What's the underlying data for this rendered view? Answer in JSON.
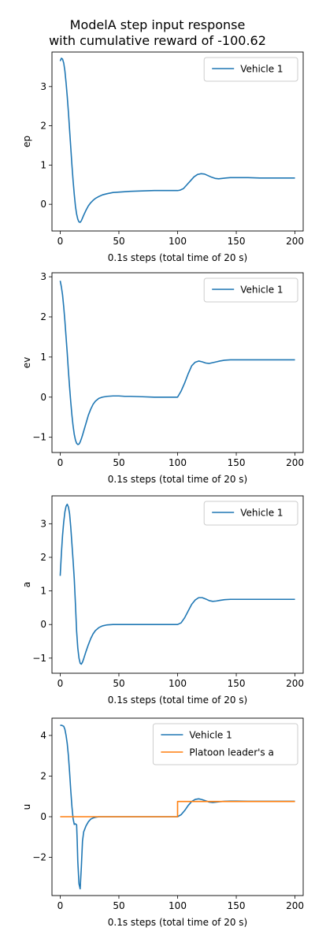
{
  "figure": {
    "title_line1": "ModelA step input response",
    "title_line2": "with cumulative reward of -100.62"
  },
  "colors": {
    "vehicle": "#1f77b4",
    "leader": "#ff7f0e",
    "axes": "#000000",
    "legend_border": "#cccccc"
  },
  "chart_data": [
    {
      "type": "line",
      "ylabel": "ep",
      "xlabel": "0.1s steps (total time of 20 s)",
      "xlim": [
        -7,
        207
      ],
      "ylim": [
        -0.68,
        3.88
      ],
      "xticks": [
        0,
        50,
        100,
        150,
        200
      ],
      "yticks": [
        0,
        1,
        2,
        3
      ],
      "grid": false,
      "legend_position": "upper right",
      "series": [
        {
          "name": "Vehicle 1",
          "color": "#1f77b4",
          "x": [
            0,
            1,
            2,
            3,
            4,
            5,
            6,
            7,
            8,
            9,
            10,
            11,
            12,
            13,
            14,
            15,
            16,
            17,
            18,
            19,
            20,
            22,
            24,
            26,
            28,
            30,
            33,
            36,
            40,
            45,
            50,
            55,
            60,
            70,
            80,
            90,
            95,
            100,
            102,
            105,
            108,
            111,
            114,
            117,
            120,
            123,
            126,
            129,
            132,
            135,
            138,
            141,
            145,
            150,
            155,
            160,
            170,
            180,
            190,
            200
          ],
          "y": [
            3.65,
            3.72,
            3.7,
            3.6,
            3.4,
            3.1,
            2.75,
            2.35,
            1.9,
            1.45,
            1.0,
            0.6,
            0.25,
            -0.05,
            -0.25,
            -0.38,
            -0.45,
            -0.46,
            -0.42,
            -0.35,
            -0.28,
            -0.15,
            -0.04,
            0.04,
            0.1,
            0.15,
            0.2,
            0.24,
            0.27,
            0.3,
            0.31,
            0.32,
            0.33,
            0.34,
            0.35,
            0.35,
            0.35,
            0.35,
            0.36,
            0.4,
            0.5,
            0.6,
            0.7,
            0.76,
            0.78,
            0.77,
            0.73,
            0.69,
            0.66,
            0.65,
            0.66,
            0.67,
            0.68,
            0.68,
            0.68,
            0.68,
            0.67,
            0.67,
            0.67,
            0.67
          ]
        }
      ]
    },
    {
      "type": "line",
      "ylabel": "ev",
      "xlabel": "0.1s steps (total time of 20 s)",
      "xlim": [
        -7,
        207
      ],
      "ylim": [
        -1.38,
        3.1
      ],
      "xticks": [
        0,
        50,
        100,
        150,
        200
      ],
      "yticks": [
        -1,
        0,
        1,
        2,
        3
      ],
      "grid": false,
      "legend_position": "upper right",
      "series": [
        {
          "name": "Vehicle 1",
          "color": "#1f77b4",
          "x": [
            0,
            1,
            2,
            3,
            4,
            5,
            6,
            7,
            8,
            9,
            10,
            11,
            12,
            13,
            14,
            15,
            16,
            17,
            18,
            19,
            20,
            22,
            24,
            26,
            28,
            30,
            33,
            36,
            40,
            45,
            50,
            55,
            60,
            70,
            80,
            90,
            95,
            100,
            103,
            106,
            109,
            112,
            115,
            118,
            121,
            124,
            127,
            130,
            133,
            136,
            140,
            145,
            150,
            160,
            170,
            180,
            190,
            200
          ],
          "y": [
            2.9,
            2.75,
            2.55,
            2.25,
            1.9,
            1.5,
            1.1,
            0.65,
            0.25,
            -0.12,
            -0.45,
            -0.72,
            -0.93,
            -1.07,
            -1.15,
            -1.18,
            -1.17,
            -1.12,
            -1.04,
            -0.95,
            -0.85,
            -0.65,
            -0.45,
            -0.3,
            -0.18,
            -0.1,
            -0.03,
            0.0,
            0.02,
            0.03,
            0.03,
            0.02,
            0.02,
            0.01,
            0.0,
            0.0,
            0.0,
            0.0,
            0.15,
            0.35,
            0.58,
            0.78,
            0.87,
            0.9,
            0.88,
            0.85,
            0.84,
            0.86,
            0.88,
            0.9,
            0.92,
            0.93,
            0.93,
            0.93,
            0.93,
            0.93,
            0.93,
            0.93
          ]
        }
      ]
    },
    {
      "type": "line",
      "ylabel": "a",
      "xlabel": "0.1s steps (total time of 20 s)",
      "xlim": [
        -7,
        207
      ],
      "ylim": [
        -1.45,
        3.83
      ],
      "xticks": [
        0,
        50,
        100,
        150,
        200
      ],
      "yticks": [
        -1,
        0,
        1,
        2,
        3
      ],
      "grid": false,
      "legend_position": "upper right",
      "series": [
        {
          "name": "Vehicle 1",
          "color": "#1f77b4",
          "x": [
            0,
            1,
            2,
            3,
            4,
            5,
            6,
            7,
            8,
            9,
            10,
            11,
            12,
            13,
            14,
            15,
            16,
            17,
            18,
            19,
            20,
            22,
            24,
            26,
            28,
            30,
            33,
            36,
            40,
            45,
            50,
            60,
            70,
            80,
            90,
            100,
            103,
            106,
            109,
            112,
            115,
            118,
            121,
            124,
            127,
            130,
            133,
            136,
            140,
            145,
            150,
            160,
            170,
            180,
            190,
            200
          ],
          "y": [
            1.45,
            2.1,
            2.65,
            3.05,
            3.35,
            3.52,
            3.58,
            3.5,
            3.3,
            2.9,
            2.4,
            1.9,
            1.35,
            0.6,
            -0.2,
            -0.7,
            -1.0,
            -1.15,
            -1.18,
            -1.12,
            -1.02,
            -0.8,
            -0.6,
            -0.42,
            -0.28,
            -0.18,
            -0.09,
            -0.04,
            -0.01,
            0.0,
            0.0,
            0.0,
            0.0,
            0.0,
            0.0,
            0.0,
            0.05,
            0.2,
            0.4,
            0.6,
            0.73,
            0.8,
            0.8,
            0.76,
            0.71,
            0.69,
            0.7,
            0.72,
            0.74,
            0.75,
            0.75,
            0.75,
            0.75,
            0.75,
            0.75,
            0.75
          ]
        }
      ]
    },
    {
      "type": "line",
      "ylabel": "u",
      "xlabel": "0.1s steps (total time of 20 s)",
      "xlim": [
        -7,
        207
      ],
      "ylim": [
        -3.88,
        4.85
      ],
      "xticks": [
        0,
        50,
        100,
        150,
        200
      ],
      "yticks": [
        -2,
        0,
        2,
        4
      ],
      "grid": false,
      "legend_position": "upper right",
      "series": [
        {
          "name": "Vehicle 1",
          "color": "#1f77b4",
          "x": [
            0,
            1,
            2,
            3,
            4,
            5,
            6,
            7,
            8,
            9,
            10,
            11,
            12,
            13,
            14,
            14.5,
            15,
            16,
            17,
            18,
            19,
            20,
            22,
            24,
            26,
            28,
            30,
            33,
            36,
            40,
            45,
            50,
            60,
            70,
            80,
            90,
            100,
            103,
            106,
            109,
            112,
            115,
            118,
            121,
            124,
            127,
            130,
            133,
            136,
            140,
            145,
            150,
            160,
            170,
            180,
            190,
            200
          ],
          "y": [
            4.5,
            4.5,
            4.48,
            4.45,
            4.3,
            4.0,
            3.6,
            3.0,
            2.2,
            1.3,
            0.5,
            -0.1,
            -0.38,
            -0.35,
            -0.4,
            -1.2,
            -2.2,
            -3.3,
            -3.55,
            -2.5,
            -1.2,
            -0.75,
            -0.45,
            -0.25,
            -0.12,
            -0.06,
            -0.03,
            0.0,
            0.0,
            0.0,
            0.0,
            0.0,
            0.0,
            0.0,
            0.0,
            0.0,
            0.0,
            0.1,
            0.3,
            0.55,
            0.75,
            0.85,
            0.88,
            0.84,
            0.78,
            0.72,
            0.7,
            0.72,
            0.74,
            0.76,
            0.77,
            0.77,
            0.76,
            0.76,
            0.76,
            0.76,
            0.76
          ]
        },
        {
          "name": "Platoon leader's a",
          "color": "#ff7f0e",
          "x": [
            0,
            100,
            100,
            200
          ],
          "y": [
            0,
            0,
            0.75,
            0.75
          ]
        }
      ]
    }
  ]
}
